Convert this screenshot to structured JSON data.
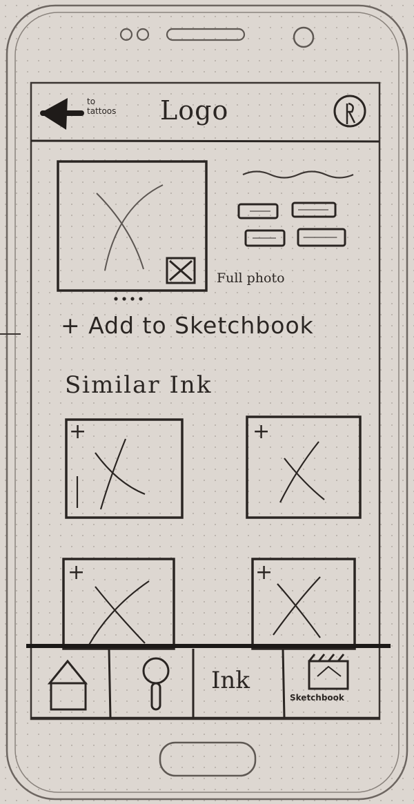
{
  "header": {
    "back_label_line1": "to",
    "back_label_line2": "tattoos",
    "logo": "Logo"
  },
  "detail": {
    "full_photo_label": "Full photo",
    "add_to_sketchbook": "+ Add to Sketchbook"
  },
  "similar": {
    "heading": "Similar Ink",
    "add_symbol": "+"
  },
  "bottom_nav": {
    "ink_label": "Ink",
    "sketchbook_label": "Sketchbook"
  },
  "colors": {
    "ink": "#2a2522",
    "paper": "#ddd7d1",
    "pencil": "#5a5450"
  }
}
